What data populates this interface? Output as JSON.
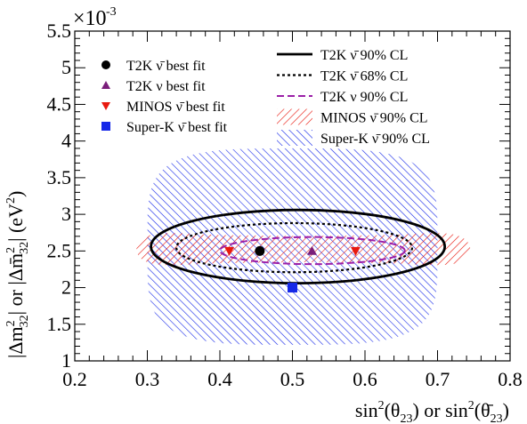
{
  "chart_data": {
    "type": "scatter",
    "xlabel": "sin²(θ₂₃) or sin²(θ̄₂₃)",
    "ylabel": "|Δm²₃₂| or |Δm̄²₃₂| (eV²)",
    "y_exponent_label": "×10",
    "y_exponent": "-3",
    "xlim": [
      0.2,
      0.8
    ],
    "ylim": [
      1.0,
      5.5
    ],
    "x_ticks": [
      "0.2",
      "0.3",
      "0.4",
      "0.5",
      "0.6",
      "0.7",
      "0.8"
    ],
    "y_ticks": [
      "1",
      "1.5",
      "2",
      "2.5",
      "3",
      "3.5",
      "4",
      "4.5",
      "5",
      "5.5"
    ],
    "grid": false,
    "best_fits": [
      {
        "name": "T2K ν̄ best fit",
        "marker": "circle",
        "color": "#000000",
        "x": 0.455,
        "y": 2.5
      },
      {
        "name": "T2K ν best fit",
        "marker": "triangle-up",
        "color": "#7a1e7a",
        "x": 0.527,
        "y": 2.5
      },
      {
        "name": "MINOS ν̄ best fit",
        "marker": "triangle-down",
        "color": "#e8190f",
        "points": [
          {
            "x": 0.413,
            "y": 2.5
          },
          {
            "x": 0.587,
            "y": 2.5
          }
        ]
      },
      {
        "name": "Super-K ν̄ best fit",
        "marker": "square",
        "color": "#1528e8",
        "x": 0.5,
        "y": 2.0
      }
    ],
    "contours": [
      {
        "name": "T2K ν̄ 90% CL",
        "style": "solid",
        "color": "#000000",
        "x_range": [
          0.305,
          0.71
        ],
        "y_range": [
          2.06,
          3.06
        ]
      },
      {
        "name": "T2K ν̄ 68% CL",
        "style": "dotted",
        "color": "#000000",
        "x_range": [
          0.34,
          0.665
        ],
        "y_range": [
          2.21,
          2.88
        ]
      },
      {
        "name": "T2K ν 90% CL",
        "style": "dashed",
        "color": "#9b1fa8",
        "x_range": [
          0.4,
          0.655
        ],
        "y_range": [
          2.32,
          2.69
        ]
      },
      {
        "name": "MINOS ν̄ 90% CL",
        "style": "hatch",
        "color": "#e8190f",
        "x_range": [
          0.285,
          0.745
        ],
        "y_range": [
          2.2,
          2.85
        ]
      },
      {
        "name": "Super-K ν̄ 90% CL",
        "style": "hatch",
        "color": "#1528e8",
        "x_range": [
          0.3,
          0.7
        ],
        "y_range": [
          1.22,
          3.9
        ]
      }
    ],
    "legend_left": [
      "T2K ν̄ best fit",
      "T2K ν best fit",
      "MINOS ν̄ best fit",
      "Super-K ν̄ best fit"
    ],
    "legend_right": [
      "T2K ν̄ 90% CL",
      "T2K ν̄ 68% CL",
      "T2K ν 90% CL",
      "MINOS ν̄ 90% CL",
      "Super-K ν̄ 90% CL"
    ],
    "legend_position": "top"
  }
}
